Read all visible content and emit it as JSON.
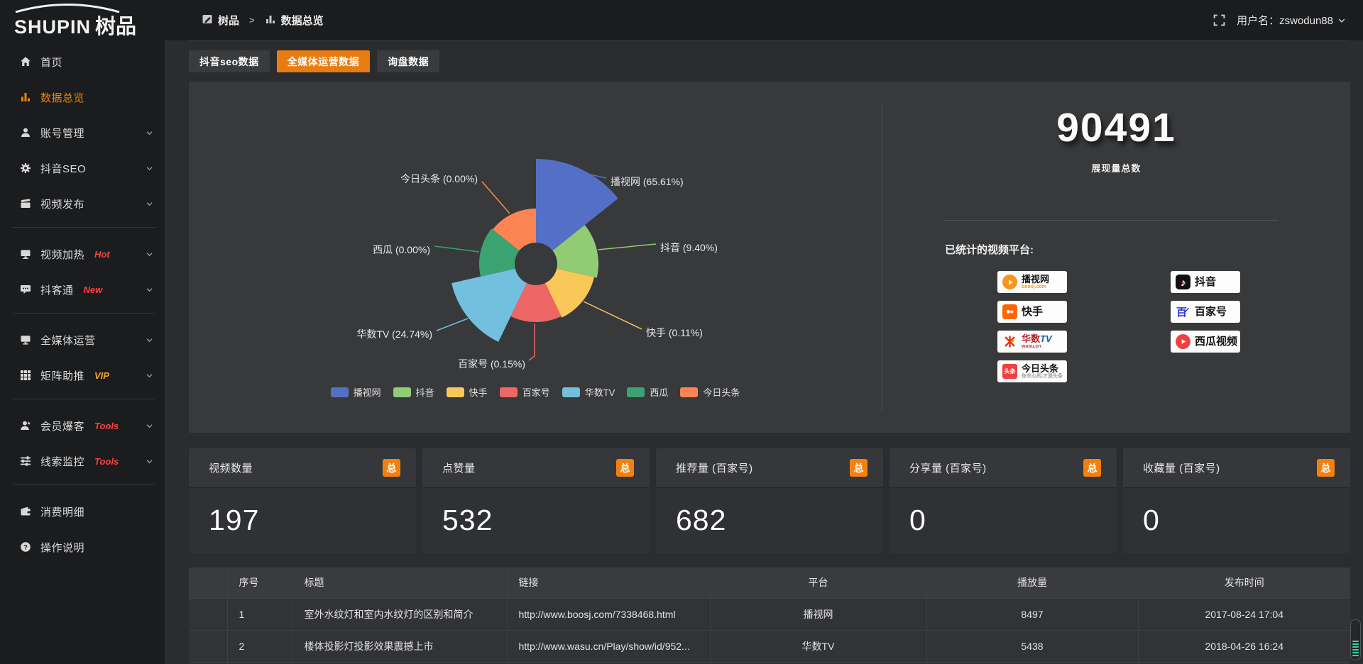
{
  "header": {
    "logo_en": "SHUPIN",
    "logo_cn": "树品",
    "breadcrumb": [
      {
        "label": "树品",
        "icon": "window-icon"
      },
      {
        "label": "数据总览",
        "icon": "barchart-icon"
      }
    ],
    "breadcrumb_separator": ">",
    "user_label": "用户名：zswodun88"
  },
  "sidebar": {
    "items": [
      {
        "label": "首页",
        "icon": "home",
        "active": false,
        "chevron": false
      },
      {
        "label": "数据总览",
        "icon": "chart",
        "active": true,
        "chevron": false
      },
      {
        "label": "账号管理",
        "icon": "user",
        "chevron": true
      },
      {
        "label": "抖音SEO",
        "icon": "gear",
        "chevron": true
      },
      {
        "label": "视频发布",
        "icon": "video",
        "chevron": true
      },
      {
        "divider": true
      },
      {
        "label": "视频加热",
        "icon": "tv",
        "tag": "Hot",
        "tag_color": "#ff4040",
        "chevron": true
      },
      {
        "label": "抖客通",
        "icon": "chat",
        "tag": "New",
        "tag_color": "#ff4040",
        "chevron": true
      },
      {
        "divider": true
      },
      {
        "label": "全媒体运营",
        "icon": "monitor",
        "chevron": true
      },
      {
        "label": "矩阵助推",
        "icon": "grid",
        "tag": "VIP",
        "tag_color": "#f5a623",
        "chevron": true
      },
      {
        "divider": true
      },
      {
        "label": "会员爆客",
        "icon": "user-star",
        "tag": "Tools",
        "tag_color": "#ff4040",
        "chevron": true
      },
      {
        "label": "线索监控",
        "icon": "sliders",
        "tag": "Tools",
        "tag_color": "#ff4040",
        "chevron": true
      },
      {
        "divider": true
      },
      {
        "label": "消费明细",
        "icon": "wallet",
        "chevron": false
      },
      {
        "label": "操作说明",
        "icon": "question",
        "chevron": false
      }
    ]
  },
  "tabs": [
    {
      "label": "抖音seo数据",
      "active": false
    },
    {
      "label": "全媒体运营数据",
      "active": true
    },
    {
      "label": "询盘数据",
      "active": false
    }
  ],
  "chart_data": {
    "type": "pie",
    "variant": "nightingale-rose",
    "unit": "percent",
    "label_format": "{name} ({pct}%)",
    "legend_position": "bottom",
    "items": [
      {
        "name": "播视网",
        "pct": "65.61",
        "color": "#5470c6"
      },
      {
        "name": "抖音",
        "pct": "9.40",
        "color": "#91cc75"
      },
      {
        "name": "快手",
        "pct": "0.11",
        "color": "#fac858"
      },
      {
        "name": "百家号",
        "pct": "0.15",
        "color": "#ee6666"
      },
      {
        "name": "华数TV",
        "pct": "24.74",
        "color": "#73c0de"
      },
      {
        "name": "西瓜",
        "pct": "0.00",
        "color": "#3ba272"
      },
      {
        "name": "今日头条",
        "pct": "0.00",
        "color": "#fc8452"
      }
    ],
    "legend": [
      "播视网",
      "抖音",
      "快手",
      "百家号",
      "华数TV",
      "西瓜",
      "今日头条"
    ]
  },
  "summary": {
    "total": "90491",
    "total_label": "展现量总数",
    "platforms_label": "已统计的视频平台:",
    "platform_badges_left": [
      {
        "name": "播视网",
        "sub": "boosj.com",
        "icon": "boosj"
      },
      {
        "name": "快手",
        "icon": "kuaishou"
      },
      {
        "name": "华数TV",
        "sub": "wasu.cn",
        "icon": "wasu"
      },
      {
        "name": "今日头条",
        "sub": "你关心的,才是头条",
        "icon": "toutiao"
      }
    ],
    "platform_badges_right": [
      {
        "name": "抖音",
        "icon": "douyin"
      },
      {
        "name": "百家号",
        "icon": "baijiahao"
      },
      {
        "name": "西瓜视频",
        "icon": "xigua"
      }
    ]
  },
  "stat_cards": [
    {
      "title": "视频数量",
      "badge": "总",
      "value": "197"
    },
    {
      "title": "点赞量",
      "badge": "总",
      "value": "532"
    },
    {
      "title": "推荐量 (百家号)",
      "badge": "总",
      "value": "682"
    },
    {
      "title": "分享量 (百家号)",
      "badge": "总",
      "value": "0"
    },
    {
      "title": "收藏量 (百家号)",
      "badge": "总",
      "value": "0"
    }
  ],
  "table": {
    "headers": [
      "序号",
      "标题",
      "链接",
      "平台",
      "播放量",
      "发布时间"
    ],
    "rows": [
      {
        "index": "1",
        "title": "室外水纹灯和室内水纹灯的区别和简介",
        "link": "http://www.boosj.com/7338468.html",
        "platform": "播视网",
        "plays": "8497",
        "time": "2017-08-24 17:04"
      },
      {
        "index": "2",
        "title": "楼体投影灯投影效果震撼上市",
        "link": "http://www.wasu.cn/Play/show/id/952...",
        "platform": "华数TV",
        "plays": "5438",
        "time": "2018-04-26 16:24"
      }
    ]
  },
  "colors": {
    "accent_orange": "#e97c10",
    "badge_orange": "#f28011",
    "sidebar_active": "#f08300",
    "link_orange": "#eb8035",
    "tag_red": "#ff4040",
    "tag_vip": "#f5a623",
    "panel_bg": "#38393b",
    "sidebar_bg": "#1b1c1e"
  }
}
